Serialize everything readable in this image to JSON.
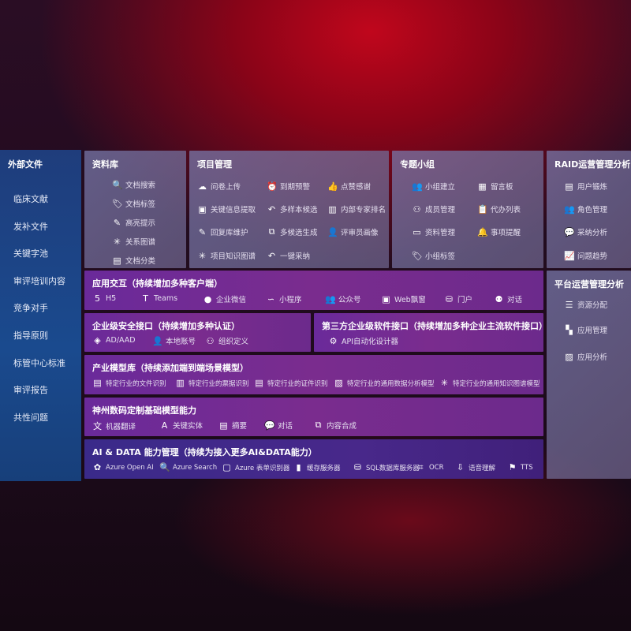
{
  "sidebar": {
    "title": "外部文件",
    "items": [
      "临床文献",
      "发补文件",
      "关键字池",
      "审评培训内容",
      "竞争对手",
      "指导原则",
      "标管中心标准",
      "审评报告",
      "共性问题"
    ]
  },
  "library": {
    "title": "资料库",
    "items": [
      {
        "label": "文档搜索",
        "icon": "doc-search"
      },
      {
        "label": "文档标签",
        "icon": "tag"
      },
      {
        "label": "高亮提示",
        "icon": "pen"
      },
      {
        "label": "关系图谱",
        "icon": "graph"
      },
      {
        "label": "文档分类",
        "icon": "doc-classify"
      }
    ]
  },
  "project": {
    "title": "项目管理",
    "items": [
      {
        "label": "问卷上传",
        "icon": "cloud-upload"
      },
      {
        "label": "到期预警",
        "icon": "alarm"
      },
      {
        "label": "点赞感谢",
        "icon": "thumbs-up"
      },
      {
        "label": "关键信息提取",
        "icon": "window"
      },
      {
        "label": "多样本候选",
        "icon": "reply"
      },
      {
        "label": "内部专家排名",
        "icon": "ranking"
      },
      {
        "label": "回复库维护",
        "icon": "pen"
      },
      {
        "label": "多候选生成",
        "icon": "puzzle"
      },
      {
        "label": "评审员画像",
        "icon": "user"
      },
      {
        "label": "项目知识图谱",
        "icon": "graph"
      },
      {
        "label": "一键采纳",
        "icon": "reply"
      }
    ]
  },
  "group": {
    "title": "专题小组",
    "items": [
      {
        "label": "小组建立",
        "icon": "users"
      },
      {
        "label": "留言板",
        "icon": "bbs"
      },
      {
        "label": "成员管理",
        "icon": "user-add"
      },
      {
        "label": "代办列表",
        "icon": "clipboard"
      },
      {
        "label": "资料管理",
        "icon": "folder"
      },
      {
        "label": "事项提醒",
        "icon": "bell"
      },
      {
        "label": "小组标签",
        "icon": "tag"
      }
    ]
  },
  "raid": {
    "title": "RAID运营管理分析",
    "items": [
      {
        "label": "用户锻炼",
        "icon": "id-card"
      },
      {
        "label": "角色管理",
        "icon": "users"
      },
      {
        "label": "采纳分析",
        "icon": "qa"
      },
      {
        "label": "问题趋势",
        "icon": "trend"
      }
    ]
  },
  "platform": {
    "title": "平台运营管理分析",
    "items": [
      {
        "label": "资源分配",
        "icon": "checklist"
      },
      {
        "label": "应用管理",
        "icon": "apps"
      },
      {
        "label": "应用分析",
        "icon": "chart"
      }
    ]
  },
  "interaction": {
    "title": "应用交互（持续增加多种客户端）",
    "items": [
      {
        "label": "H5",
        "icon": "html5"
      },
      {
        "label": "Teams",
        "icon": "teams"
      },
      {
        "label": "企业微信",
        "icon": "wecom"
      },
      {
        "label": "小程序",
        "icon": "miniprogram"
      },
      {
        "label": "公众号",
        "icon": "users"
      },
      {
        "label": "Web飘窗",
        "icon": "window"
      },
      {
        "label": "门户",
        "icon": "portal"
      },
      {
        "label": "对话",
        "icon": "chat-users"
      }
    ]
  },
  "security": {
    "title": "企业级安全接口（持续增加多种认证）",
    "items": [
      {
        "label": "AD/AAD",
        "icon": "diamond"
      },
      {
        "label": "本地账号",
        "icon": "user"
      },
      {
        "label": "组织定义",
        "icon": "org"
      }
    ]
  },
  "thirdparty": {
    "title": "第三方企业级软件接口（持续增加多种企业主流软件接口）",
    "items": [
      {
        "label": "API自动化设计器",
        "icon": "gear"
      }
    ]
  },
  "industry": {
    "title": "产业模型库（持续添加端到端场景模型）",
    "items": [
      {
        "label": "特定行业的文件识别",
        "icon": "doc"
      },
      {
        "label": "特定行业的票据识别",
        "icon": "receipt"
      },
      {
        "label": "特定行业的证件识别",
        "icon": "id-card"
      },
      {
        "label": "特定行业的通用数据分析模型",
        "icon": "image"
      },
      {
        "label": "特定行业的通用知识图谱模型",
        "icon": "graph"
      }
    ]
  },
  "base": {
    "title": "神州数码定制基础模型能力",
    "items": [
      {
        "label": "机器翻译",
        "icon": "translate"
      },
      {
        "label": "关键实体",
        "icon": "entity"
      },
      {
        "label": "摘要",
        "icon": "doc"
      },
      {
        "label": "对话",
        "icon": "chat"
      },
      {
        "label": "内容合成",
        "icon": "puzzle"
      }
    ]
  },
  "aidata": {
    "title": "AI & DATA 能力管理（持续为接入更多AI&DATA能力）",
    "items": [
      {
        "label": "Azure Open AI",
        "icon": "openai"
      },
      {
        "label": "Azure Search",
        "icon": "doc-search"
      },
      {
        "label": "Azure 表单识别器",
        "icon": "form"
      },
      {
        "label": "缓存服务器",
        "icon": "cache"
      },
      {
        "label": "SQL数据库服务器",
        "icon": "database"
      },
      {
        "label": "OCR",
        "icon": "ocr"
      },
      {
        "label": "语音理解",
        "icon": "speech"
      },
      {
        "label": "TTS",
        "icon": "tts"
      }
    ]
  }
}
